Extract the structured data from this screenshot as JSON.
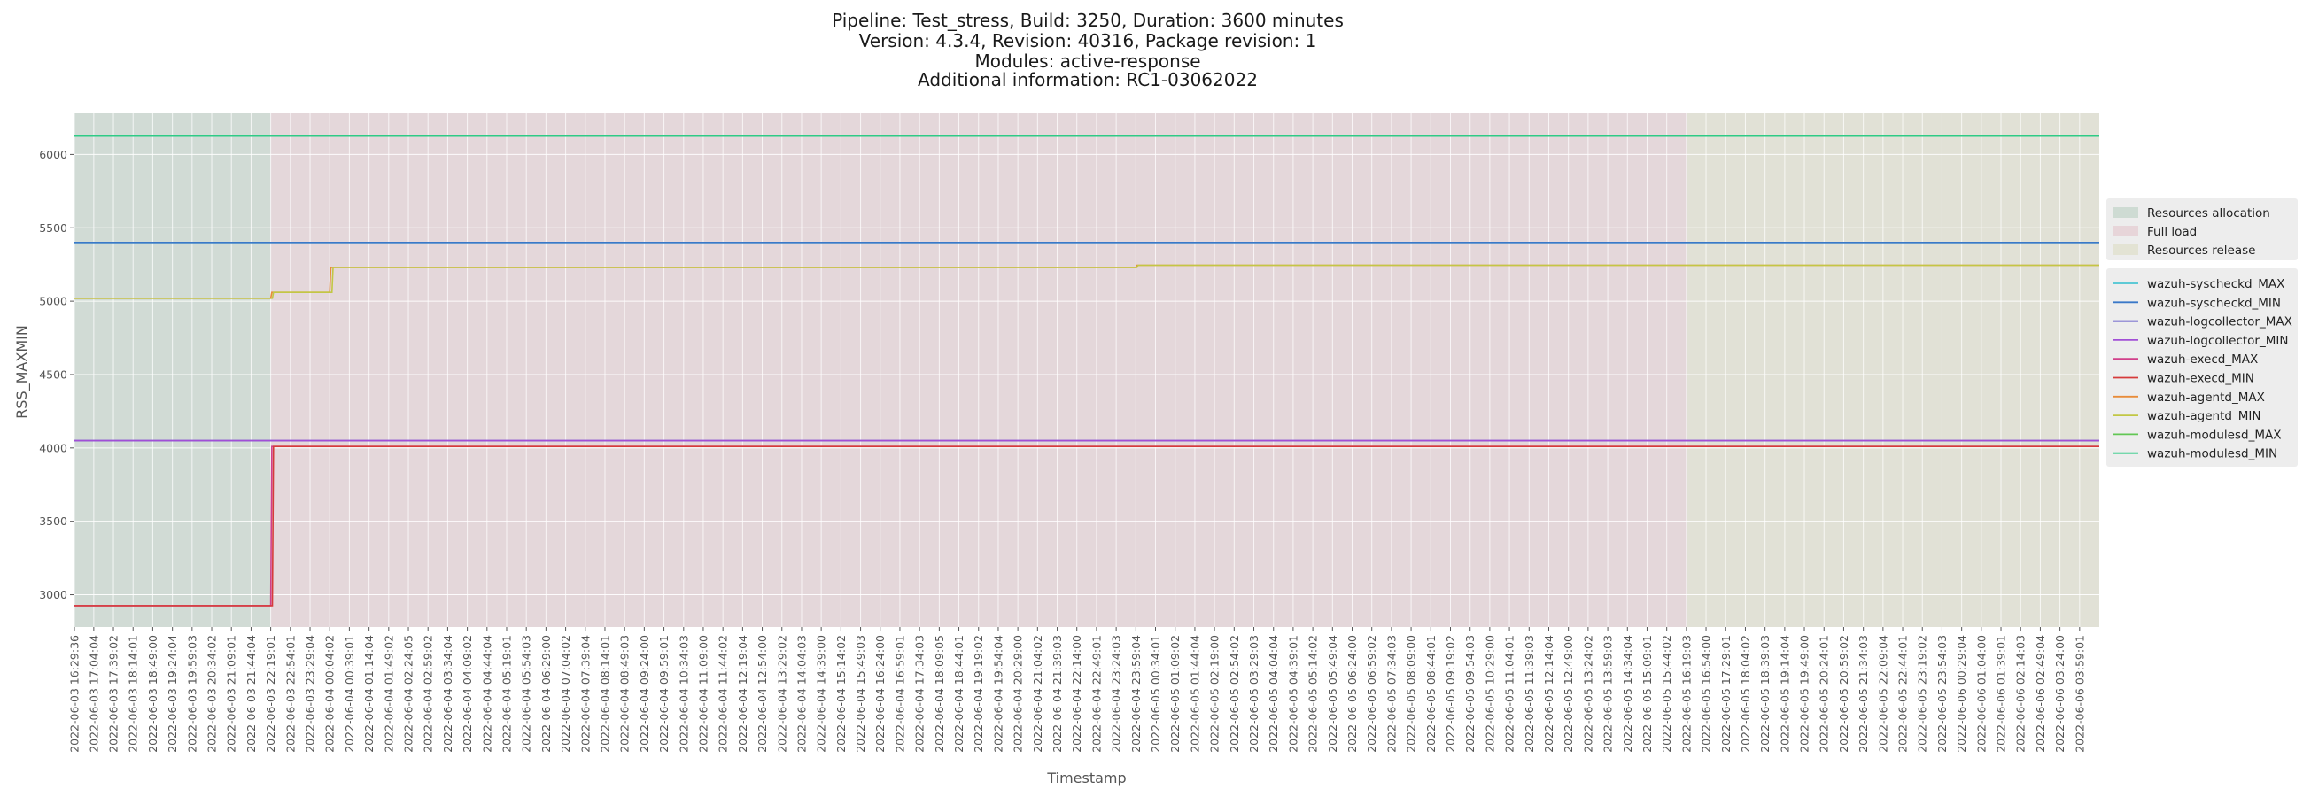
{
  "chart_data": {
    "type": "line",
    "title": [
      "Pipeline: Test_stress, Build: 3250, Duration: 3600 minutes",
      "Version: 4.3.4, Revision: 40316, Package revision: 1",
      "Modules: active-response",
      "Additional information: RC1-03062022"
    ],
    "xlabel": "Timestamp",
    "ylabel": "RSS_MAXMIN",
    "ylim": [
      2780,
      6280
    ],
    "yticks": [
      3000,
      3500,
      4000,
      4500,
      5000,
      5500,
      6000
    ],
    "grid": true,
    "legend_position": "right",
    "x_ticks": [
      "2022-06-03 16:29:36",
      "2022-06-03 17:04:04",
      "2022-06-03 17:39:02",
      "2022-06-03 18:14:01",
      "2022-06-03 18:49:00",
      "2022-06-03 19:24:04",
      "2022-06-03 19:59:03",
      "2022-06-03 20:34:02",
      "2022-06-03 21:09:01",
      "2022-06-03 21:44:04",
      "2022-06-03 22:19:01",
      "2022-06-03 22:54:01",
      "2022-06-03 23:29:04",
      "2022-06-04 00:04:02",
      "2022-06-04 00:39:01",
      "2022-06-04 01:14:04",
      "2022-06-04 01:49:02",
      "2022-06-04 02:24:05",
      "2022-06-04 02:59:02",
      "2022-06-04 03:34:04",
      "2022-06-04 04:09:02",
      "2022-06-04 04:44:04",
      "2022-06-04 05:19:01",
      "2022-06-04 05:54:03",
      "2022-06-04 06:29:00",
      "2022-06-04 07:04:02",
      "2022-06-04 07:39:04",
      "2022-06-04 08:14:01",
      "2022-06-04 08:49:03",
      "2022-06-04 09:24:00",
      "2022-06-04 09:59:01",
      "2022-06-04 10:34:03",
      "2022-06-04 11:09:00",
      "2022-06-04 11:44:02",
      "2022-06-04 12:19:04",
      "2022-06-04 12:54:00",
      "2022-06-04 13:29:02",
      "2022-06-04 14:04:03",
      "2022-06-04 14:39:00",
      "2022-06-04 15:14:02",
      "2022-06-04 15:49:03",
      "2022-06-04 16:24:00",
      "2022-06-04 16:59:01",
      "2022-06-04 17:34:03",
      "2022-06-04 18:09:05",
      "2022-06-04 18:44:01",
      "2022-06-04 19:19:02",
      "2022-06-04 19:54:04",
      "2022-06-04 20:29:00",
      "2022-06-04 21:04:02",
      "2022-06-04 21:39:03",
      "2022-06-04 22:14:00",
      "2022-06-04 22:49:01",
      "2022-06-04 23:24:03",
      "2022-06-04 23:59:04",
      "2022-06-05 00:34:01",
      "2022-06-05 01:09:02",
      "2022-06-05 01:44:04",
      "2022-06-05 02:19:00",
      "2022-06-05 02:54:02",
      "2022-06-05 03:29:03",
      "2022-06-05 04:04:04",
      "2022-06-05 04:39:01",
      "2022-06-05 05:14:02",
      "2022-06-05 05:49:04",
      "2022-06-05 06:24:00",
      "2022-06-05 06:59:02",
      "2022-06-05 07:34:03",
      "2022-06-05 08:09:00",
      "2022-06-05 08:44:01",
      "2022-06-05 09:19:02",
      "2022-06-05 09:54:03",
      "2022-06-05 10:29:00",
      "2022-06-05 11:04:01",
      "2022-06-05 11:39:03",
      "2022-06-05 12:14:04",
      "2022-06-05 12:49:00",
      "2022-06-05 13:24:02",
      "2022-06-05 13:59:03",
      "2022-06-05 14:34:04",
      "2022-06-05 15:09:01",
      "2022-06-05 15:44:02",
      "2022-06-05 16:19:03",
      "2022-06-05 16:54:00",
      "2022-06-05 17:29:01",
      "2022-06-05 18:04:02",
      "2022-06-05 18:39:03",
      "2022-06-05 19:14:04",
      "2022-06-05 19:49:00",
      "2022-06-05 20:24:01",
      "2022-06-05 20:59:02",
      "2022-06-05 21:34:03",
      "2022-06-05 22:09:04",
      "2022-06-05 22:44:01",
      "2022-06-05 23:19:02",
      "2022-06-05 23:54:03",
      "2022-06-06 00:29:04",
      "2022-06-06 01:04:00",
      "2022-06-06 01:39:01",
      "2022-06-06 02:14:03",
      "2022-06-06 02:49:04",
      "2022-06-06 03:24:00",
      "2022-06-06 03:59:01"
    ],
    "phases": [
      {
        "name": "Resources allocation",
        "start": "2022-06-03 16:29:36",
        "end": "2022-06-03 22:19:01",
        "color": "#b9cfc2"
      },
      {
        "name": "Full load",
        "start": "2022-06-03 22:19:01",
        "end": "2022-06-05 16:19:03",
        "color": "#e3c5cb"
      },
      {
        "name": "Resources release",
        "start": "2022-06-05 16:19:03",
        "end": "2022-06-06 04:34:00",
        "color": "#dcdcc3"
      }
    ],
    "series": [
      {
        "name": "wazuh-syscheckd_MAX",
        "color": "#49c5d3",
        "points": [
          [
            "2022-06-03 16:29:36",
            5400
          ],
          [
            "2022-06-06 04:34:00",
            5400
          ]
        ]
      },
      {
        "name": "wazuh-syscheckd_MIN",
        "color": "#3a78c8",
        "points": [
          [
            "2022-06-03 16:29:36",
            5400
          ],
          [
            "2022-06-06 04:34:00",
            5400
          ]
        ]
      },
      {
        "name": "wazuh-logcollector_MAX",
        "color": "#4a3fc4",
        "points": [
          [
            "2022-06-03 16:29:36",
            4050
          ],
          [
            "2022-06-06 04:34:00",
            4050
          ]
        ]
      },
      {
        "name": "wazuh-logcollector_MIN",
        "color": "#a14fd6",
        "points": [
          [
            "2022-06-03 16:29:36",
            4050
          ],
          [
            "2022-06-06 04:34:00",
            4050
          ]
        ]
      },
      {
        "name": "wazuh-execd_MAX",
        "color": "#d13f8a",
        "points": [
          [
            "2022-06-03 16:29:36",
            2925
          ],
          [
            "2022-06-03 22:19:01",
            2925
          ],
          [
            "2022-06-03 22:21:00",
            4010
          ],
          [
            "2022-06-06 04:34:00",
            4010
          ]
        ]
      },
      {
        "name": "wazuh-execd_MIN",
        "color": "#d63b3b",
        "points": [
          [
            "2022-06-03 16:29:36",
            2925
          ],
          [
            "2022-06-03 22:22:00",
            2925
          ],
          [
            "2022-06-03 22:24:00",
            4010
          ],
          [
            "2022-06-06 04:34:00",
            4010
          ]
        ]
      },
      {
        "name": "wazuh-agentd_MAX",
        "color": "#e88c3a",
        "points": [
          [
            "2022-06-03 16:29:36",
            5020
          ],
          [
            "2022-06-03 22:19:01",
            5020
          ],
          [
            "2022-06-03 22:21:00",
            5060
          ],
          [
            "2022-06-04 00:04:02",
            5060
          ],
          [
            "2022-06-04 00:06:00",
            5230
          ],
          [
            "2022-06-04 23:59:04",
            5230
          ],
          [
            "2022-06-05 00:01:00",
            5245
          ],
          [
            "2022-06-06 04:34:00",
            5245
          ]
        ]
      },
      {
        "name": "wazuh-agentd_MIN",
        "color": "#c2c744",
        "points": [
          [
            "2022-06-03 16:29:36",
            5020
          ],
          [
            "2022-06-03 22:22:00",
            5020
          ],
          [
            "2022-06-03 22:24:00",
            5060
          ],
          [
            "2022-06-04 00:08:00",
            5060
          ],
          [
            "2022-06-04 00:10:00",
            5230
          ],
          [
            "2022-06-05 00:01:00",
            5230
          ],
          [
            "2022-06-05 00:03:00",
            5245
          ],
          [
            "2022-06-06 04:34:00",
            5245
          ]
        ]
      },
      {
        "name": "wazuh-modulesd_MAX",
        "color": "#62c755",
        "points": [
          [
            "2022-06-03 16:29:36",
            6125
          ],
          [
            "2022-06-06 04:34:00",
            6125
          ]
        ]
      },
      {
        "name": "wazuh-modulesd_MIN",
        "color": "#2ecb86",
        "points": [
          [
            "2022-06-03 16:29:36",
            6125
          ],
          [
            "2022-06-06 04:34:00",
            6125
          ]
        ]
      }
    ]
  }
}
